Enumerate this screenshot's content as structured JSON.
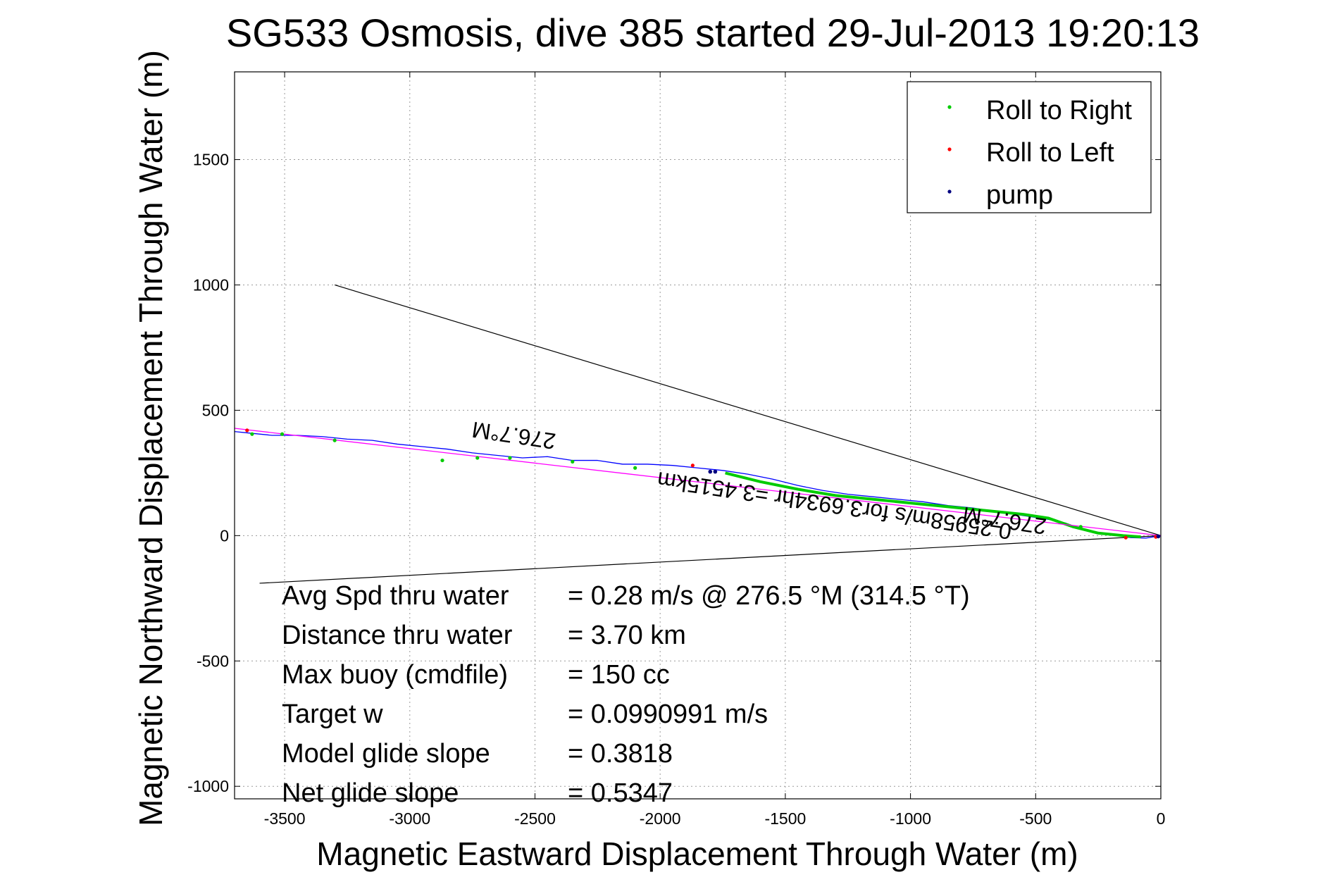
{
  "chart_data": {
    "type": "line",
    "title": "SG533 Osmosis, dive 385 started 29-Jul-2013 19:20:13",
    "xlabel": "Magnetic Eastward Displacement Through Water (m)",
    "ylabel": "Magnetic Northward Displacement Through Water (m)",
    "xlim": [
      -3700,
      0
    ],
    "ylim": [
      -1050,
      1850
    ],
    "xticks": [
      -3500,
      -3000,
      -2500,
      -2000,
      -1500,
      -1000,
      -500,
      0
    ],
    "yticks": [
      -1000,
      -500,
      0,
      500,
      1000,
      1500
    ],
    "grid": true,
    "legend_placement": "top-right",
    "legend": [
      {
        "label": "Roll to Right",
        "color": "#00cc00"
      },
      {
        "label": "Roll to Left",
        "color": "#ff0000"
      },
      {
        "label": "pump",
        "color": "#000080"
      }
    ],
    "series": [
      {
        "color": "#0000ff",
        "x": [
          0,
          -60,
          -120,
          -200,
          -300,
          -380,
          -450,
          -550,
          -650,
          -750,
          -850,
          -950,
          -1050,
          -1150,
          -1250,
          -1350,
          -1450,
          -1550,
          -1650,
          -1750,
          -1850,
          -1950,
          -2050,
          -2150,
          -2250,
          -2350,
          -2450,
          -2550,
          -2650,
          -2750,
          -2850,
          -2950,
          -3050,
          -3150,
          -3250,
          -3350,
          -3450,
          -3550,
          -3650,
          -3700
        ],
        "y": [
          0,
          -10,
          -8,
          5,
          20,
          50,
          65,
          80,
          95,
          110,
          120,
          135,
          145,
          155,
          165,
          180,
          200,
          225,
          245,
          260,
          270,
          280,
          285,
          285,
          300,
          300,
          315,
          310,
          320,
          330,
          345,
          355,
          365,
          380,
          385,
          395,
          400,
          400,
          410,
          415
        ]
      },
      {
        "color": "#00cc00",
        "x": [
          -80,
          -150,
          -250,
          -350,
          -450,
          -550,
          -700,
          -850,
          -1000,
          -1150,
          -1300,
          -1450,
          -1600,
          -1740
        ],
        "y": [
          -5,
          0,
          10,
          35,
          70,
          85,
          100,
          115,
          130,
          145,
          160,
          185,
          215,
          250
        ]
      },
      {
        "color": "#ff00ff",
        "x": [
          0,
          -3700
        ],
        "y": [
          0,
          428
        ]
      }
    ],
    "roll_right_points": {
      "x": [
        -320,
        -2100,
        -2350,
        -2600,
        -2730,
        -2870,
        -3300,
        -3510,
        -3630
      ],
      "y": [
        35,
        270,
        295,
        310,
        310,
        300,
        380,
        405,
        405
      ]
    },
    "roll_left_points": {
      "x": [
        -20,
        -140,
        -1870,
        -3650
      ],
      "y": [
        -5,
        -8,
        280,
        420
      ]
    },
    "pump_points": {
      "x": [
        -10,
        -1780,
        -1800
      ],
      "y": [
        -3,
        255,
        255
      ]
    },
    "heading_lines": [
      {
        "x": [
          -3300,
          0
        ],
        "y": [
          1000,
          0
        ]
      },
      {
        "x": [
          -3600,
          0
        ],
        "y": [
          -190,
          0
        ]
      }
    ],
    "annotations": [
      {
        "text": "276.7°M",
        "x": -2580,
        "y": 430
      },
      {
        "text": "0.25958m/s for3.6934hr =3.4515km",
        "x": -1300,
        "y": 150
      },
      {
        "text": "276.7°M",
        "x": -620,
        "y": 90
      }
    ],
    "stats": [
      {
        "label": "Avg Spd thru water",
        "value": "=  0.28 m/s @ 276.5 °M (314.5 °T)"
      },
      {
        "label": "Distance thru water",
        "value": "=  3.70 km"
      },
      {
        "label": "Max buoy (cmdfile)",
        "value": "= 150 cc"
      },
      {
        "label": "Target w",
        "value": "= 0.0990991 m/s"
      },
      {
        "label": "Model glide slope",
        "value": "= 0.3818"
      },
      {
        "label": "Net glide slope",
        "value": "= 0.5347"
      }
    ]
  }
}
